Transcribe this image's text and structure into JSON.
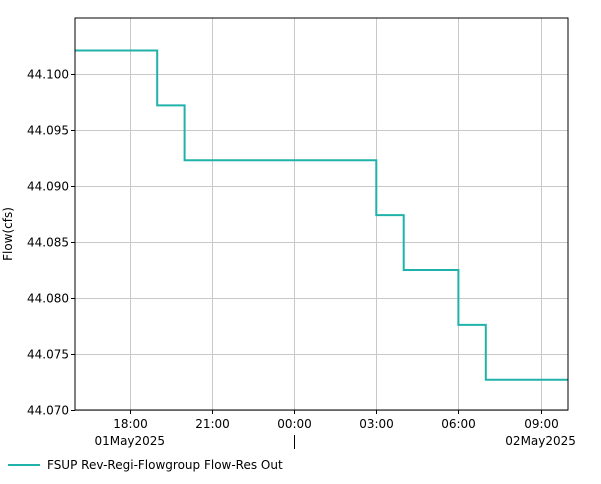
{
  "chart_data": {
    "type": "line",
    "step": true,
    "title": "",
    "ylabel": "Flow(cfs)",
    "xlabel": "",
    "x_range": [
      "2025-05-01T16:00",
      "2025-05-02T10:00"
    ],
    "ylim": [
      44.07,
      44.105
    ],
    "yticks": [
      44.07,
      44.075,
      44.08,
      44.085,
      44.09,
      44.095,
      44.1
    ],
    "ytick_labels": [
      "44.070",
      "44.075",
      "44.080",
      "44.085",
      "44.090",
      "44.095",
      "44.100"
    ],
    "xticks": [
      "2025-05-01T18:00",
      "2025-05-01T21:00",
      "2025-05-02T00:00",
      "2025-05-02T03:00",
      "2025-05-02T06:00",
      "2025-05-02T09:00"
    ],
    "xtick_labels": [
      "18:00",
      "21:00",
      "00:00",
      "03:00",
      "06:00",
      "09:00"
    ],
    "date_labels": [
      {
        "label": "01May2025",
        "at": "2025-05-01T18:00"
      },
      {
        "label": "02May2025",
        "at": "2025-05-02T09:00"
      }
    ],
    "day_separator": "2025-05-02T00:00",
    "grid": true,
    "legend_position": "bottom-left",
    "series": [
      {
        "name": "FSUP Rev-Regi-Flowgroup Flow-Res Out",
        "color": "#20b2aa",
        "points": [
          {
            "x": "2025-05-01T16:00",
            "y": 44.1021
          },
          {
            "x": "2025-05-01T19:00",
            "y": 44.0972
          },
          {
            "x": "2025-05-01T20:00",
            "y": 44.0923
          },
          {
            "x": "2025-05-02T03:00",
            "y": 44.0874
          },
          {
            "x": "2025-05-02T04:00",
            "y": 44.0825
          },
          {
            "x": "2025-05-02T06:00",
            "y": 44.0776
          },
          {
            "x": "2025-05-02T07:00",
            "y": 44.0727
          },
          {
            "x": "2025-05-02T10:00",
            "y": 44.0727
          }
        ]
      }
    ]
  }
}
